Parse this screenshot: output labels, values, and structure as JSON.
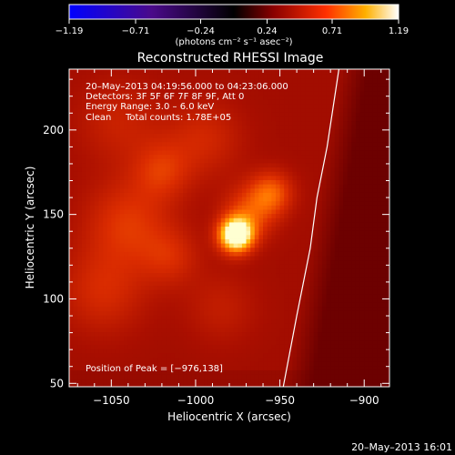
{
  "colorbar": {
    "tick_labels": [
      "-1.19",
      "-0.71",
      "-0.24",
      "0.24",
      "0.71",
      "1.19"
    ],
    "ticks": [
      -1.19,
      -0.71,
      -0.24,
      0.24,
      0.71,
      1.19
    ],
    "range": [
      -1.19,
      1.19
    ],
    "units": "(photons cm⁻² s⁻¹ asec⁻²)"
  },
  "chart_data": {
    "type": "heatmap",
    "title": "Reconstructed RHESSI Image",
    "xlabel": "Heliocentric X (arcsec)",
    "ylabel": "Heliocentric Y (arcsec)",
    "xlim": [
      -1075,
      -885
    ],
    "ylim": [
      48,
      236
    ],
    "x_ticks": [
      -1050,
      -1000,
      -950,
      -900
    ],
    "x_tick_labels": [
      "−1050",
      "−1000",
      "−950",
      "−900"
    ],
    "y_ticks": [
      50,
      100,
      150,
      200
    ],
    "y_tick_labels": [
      "50",
      "100",
      "150",
      "200"
    ],
    "peak": [
      -976,
      138
    ],
    "sources": [
      {
        "x": -976,
        "y": 138,
        "sigma": 7,
        "amp": 1.0
      },
      {
        "x": -968,
        "y": 151,
        "sigma": 11,
        "amp": 0.3
      },
      {
        "x": -955,
        "y": 163,
        "sigma": 9,
        "amp": 0.35
      },
      {
        "x": -1040,
        "y": 145,
        "sigma": 18,
        "amp": 0.25
      },
      {
        "x": -1020,
        "y": 176,
        "sigma": 12,
        "amp": 0.22
      },
      {
        "x": -995,
        "y": 195,
        "sigma": 16,
        "amp": 0.18
      },
      {
        "x": -1055,
        "y": 105,
        "sigma": 18,
        "amp": 0.2
      },
      {
        "x": -1015,
        "y": 125,
        "sigma": 12,
        "amp": 0.18
      },
      {
        "x": -985,
        "y": 95,
        "sigma": 15,
        "amp": 0.12
      },
      {
        "x": -1045,
        "y": 205,
        "sigma": 18,
        "amp": 0.15
      }
    ],
    "limb": [
      [
        -948,
        48
      ],
      [
        -940,
        90
      ],
      [
        -932,
        130
      ],
      [
        -928,
        160
      ],
      [
        -922,
        190
      ],
      [
        -915,
        236
      ]
    ],
    "annotations": {
      "time": "20–May–2013 04:19:56.000 to 04:23:06.000",
      "detectors": "Detectors: 3F 5F 6F 7F 8F 9F, Att 0",
      "energy": "Energy Range: 3.0 – 6.0 keV",
      "clean_label": "Clean",
      "counts": "Total counts: 1.78E+05",
      "peak_text": "Position of Peak = [−976,138]"
    }
  },
  "footer": {
    "timestamp": "20–May–2013 16:01"
  }
}
